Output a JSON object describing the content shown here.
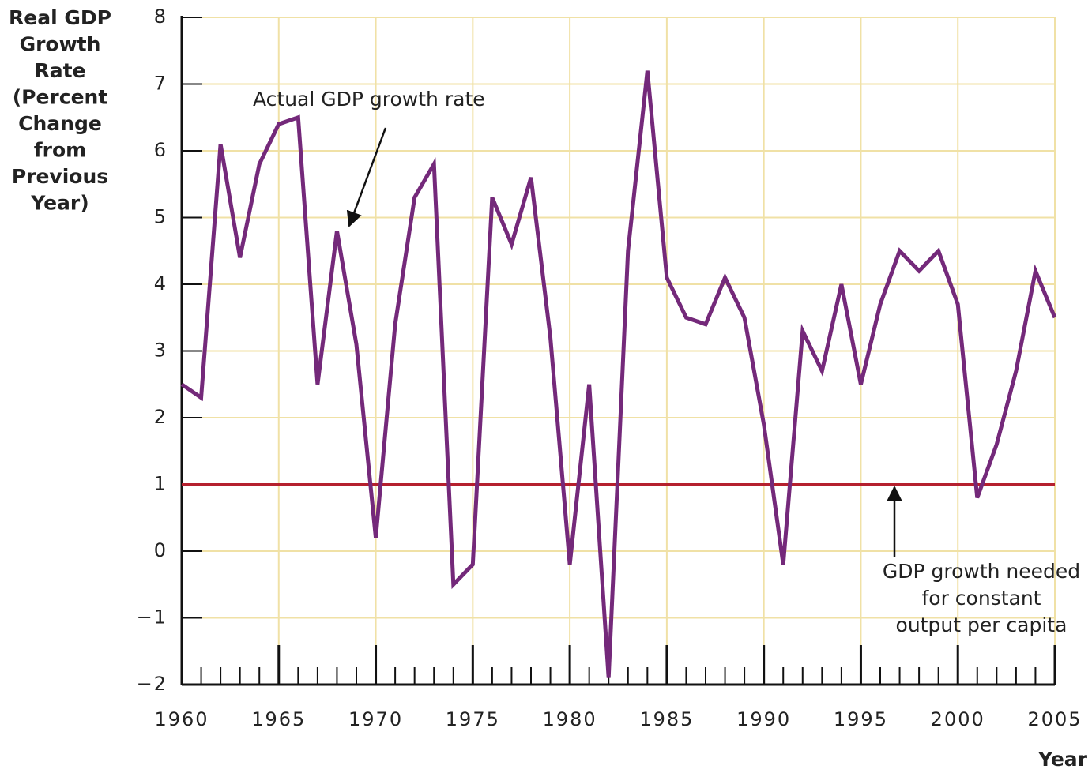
{
  "chart_data": {
    "type": "line",
    "ylabel": [
      "Real GDP",
      "Growth",
      "Rate",
      "(Percent",
      "Change",
      "from",
      "Previous",
      "Year)"
    ],
    "xlabel": "Year",
    "x": [
      1960,
      1961,
      1962,
      1963,
      1964,
      1965,
      1966,
      1967,
      1968,
      1969,
      1970,
      1971,
      1972,
      1973,
      1974,
      1975,
      1976,
      1977,
      1978,
      1979,
      1980,
      1981,
      1982,
      1983,
      1984,
      1985,
      1986,
      1987,
      1988,
      1989,
      1990,
      1991,
      1992,
      1993,
      1994,
      1995,
      1996,
      1997,
      1998,
      1999,
      2000,
      2001,
      2002,
      2003,
      2004,
      2005
    ],
    "series": [
      {
        "name": "Actual GDP growth rate",
        "color": "#74297a",
        "values": [
          2.5,
          2.3,
          6.1,
          4.4,
          5.8,
          6.4,
          6.5,
          2.5,
          4.8,
          3.1,
          0.2,
          3.4,
          5.3,
          5.8,
          -0.5,
          -0.2,
          5.3,
          4.6,
          5.6,
          3.2,
          -0.2,
          2.5,
          -1.9,
          4.5,
          7.2,
          4.1,
          3.5,
          3.4,
          4.1,
          3.5,
          1.9,
          -0.2,
          3.3,
          2.7,
          4.0,
          2.5,
          3.7,
          4.5,
          4.2,
          4.5,
          3.7,
          0.8,
          1.6,
          2.7,
          4.2,
          3.5
        ]
      }
    ],
    "reference_line": {
      "value": 1,
      "color": "#b5202e",
      "label": [
        "GDP growth needed",
        "for constant",
        "output per capita"
      ]
    },
    "xlim": [
      1960,
      2005
    ],
    "xticks": [
      1960,
      1965,
      1970,
      1975,
      1980,
      1985,
      1990,
      1995,
      2000,
      2005
    ],
    "ylim": [
      -2,
      8
    ],
    "yticks": [
      {
        "value": -2,
        "label": "−2"
      },
      {
        "value": -1,
        "label": "−1"
      },
      0,
      1,
      2,
      3,
      4,
      5,
      6,
      7,
      8
    ],
    "grid": true,
    "grid_color": "#f0e1a6"
  }
}
